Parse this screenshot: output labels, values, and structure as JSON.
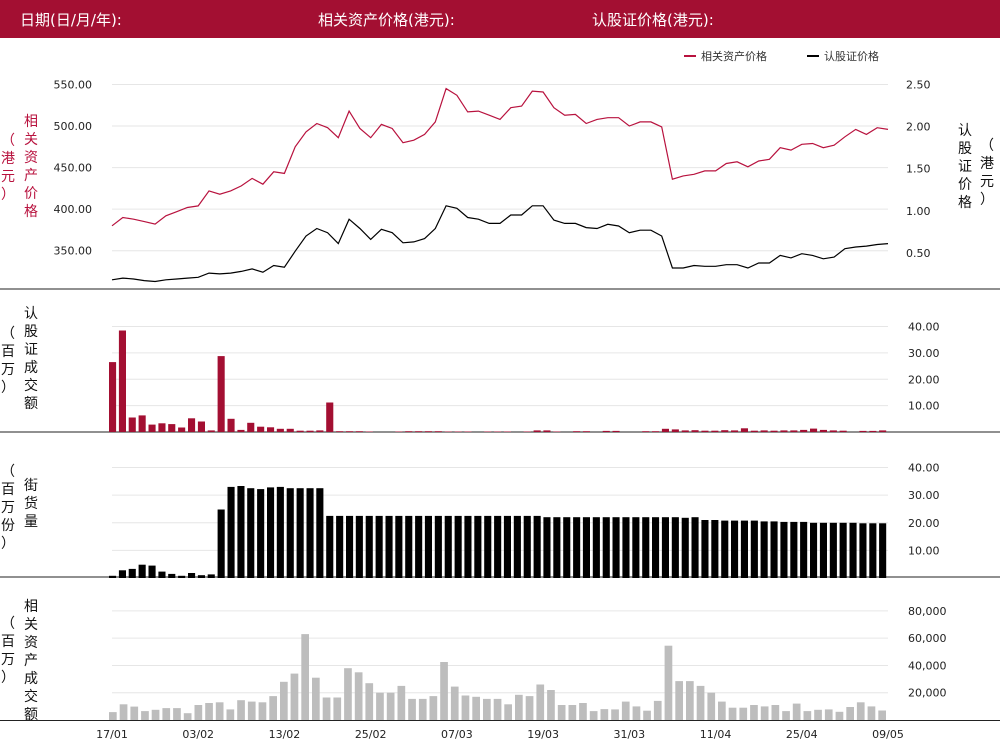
{
  "header": {
    "date_label": "日期(日/月/年):",
    "asset_price_label": "相关资产价格(港元):",
    "warrant_price_label": "认股证价格(港元):"
  },
  "colors": {
    "brand": "#a30f32",
    "asset_line": "#b8123e",
    "warrant_line": "#000000",
    "warrant_turnover_bars": "#a30f32",
    "outstanding_bars": "#000000",
    "asset_turnover_bars": "#bdbdbd"
  },
  "x_ticks": [
    "17/01",
    "03/02",
    "13/02",
    "25/02",
    "07/03",
    "19/03",
    "31/03",
    "11/04",
    "25/04",
    "09/05"
  ],
  "chart_data": [
    {
      "type": "line",
      "legend": [
        "相关资产价格",
        "认股证价格"
      ],
      "legend_position": "top-right",
      "ylabel_left": "相关资产价格",
      "ylabel_left_unit": "（港元）",
      "ylabel_right": "认股证价格",
      "ylabel_right_unit": "（港元）",
      "left_ticks": [
        "550.00",
        "500.00",
        "450.00",
        "400.00",
        "350.00"
      ],
      "right_ticks": [
        "2.50",
        "2.00",
        "1.50",
        "1.00",
        "0.50"
      ],
      "ylim_left": [
        310,
        565
      ],
      "ylim_right": [
        0.13,
        2.65
      ],
      "series": [
        {
          "name": "相关资产价格",
          "axis": "left",
          "values": [
            380,
            390,
            388,
            385,
            382,
            392,
            397,
            402,
            404,
            422,
            418,
            422,
            428,
            437,
            430,
            445,
            443,
            475,
            493,
            503,
            498,
            486,
            518,
            497,
            486,
            502,
            497,
            480,
            483,
            490,
            505,
            545,
            537,
            517,
            518,
            513,
            508,
            522,
            524,
            542,
            541,
            522,
            513,
            514,
            503,
            508,
            510,
            510,
            500,
            505,
            505,
            499,
            436,
            440,
            442,
            446,
            446,
            455,
            457,
            451,
            458,
            460,
            474,
            471,
            478,
            479,
            474,
            477,
            487,
            496,
            490,
            498,
            496
          ]
        },
        {
          "name": "认股证价格",
          "axis": "right",
          "values": [
            0.18,
            0.2,
            0.19,
            0.17,
            0.16,
            0.18,
            0.19,
            0.2,
            0.21,
            0.26,
            0.25,
            0.26,
            0.28,
            0.31,
            0.27,
            0.35,
            0.33,
            0.52,
            0.7,
            0.79,
            0.74,
            0.61,
            0.9,
            0.79,
            0.66,
            0.78,
            0.74,
            0.62,
            0.63,
            0.67,
            0.79,
            1.06,
            1.03,
            0.92,
            0.9,
            0.85,
            0.85,
            0.95,
            0.95,
            1.06,
            1.06,
            0.89,
            0.85,
            0.85,
            0.8,
            0.79,
            0.84,
            0.82,
            0.74,
            0.77,
            0.77,
            0.7,
            0.32,
            0.32,
            0.35,
            0.34,
            0.34,
            0.36,
            0.36,
            0.32,
            0.38,
            0.38,
            0.47,
            0.44,
            0.49,
            0.47,
            0.43,
            0.45,
            0.55,
            0.57,
            0.58,
            0.6,
            0.61
          ]
        }
      ]
    },
    {
      "type": "bar",
      "ylabel": "认股证成交额",
      "ylabel_unit": "（百万）",
      "ticks": [
        "40.00",
        "30.00",
        "20.00",
        "10.00"
      ],
      "ylim": [
        0,
        44
      ],
      "series": [
        {
          "name": "认股证成交额",
          "values": [
            26.5,
            38.5,
            5.5,
            6.3,
            2.8,
            3.3,
            3.0,
            1.7,
            5.2,
            4.0,
            0.6,
            28.8,
            5.0,
            0.8,
            3.5,
            2.0,
            1.8,
            1.2,
            1.2,
            0.5,
            0.5,
            0.6,
            11.2,
            0.3,
            0.3,
            0.3,
            0.2,
            0,
            0,
            0.2,
            0.3,
            0.3,
            0.3,
            0.3,
            0.2,
            0.2,
            0.2,
            0,
            0.2,
            0.2,
            0.2,
            0,
            0.2,
            0.6,
            0.6,
            0.2,
            0,
            0.3,
            0.3,
            0,
            0.4,
            0.4,
            0,
            0,
            0.3,
            0.3,
            1.2,
            1.0,
            0.6,
            0.7,
            0.5,
            0.5,
            0.7,
            0.6,
            1.4,
            0.5,
            0.6,
            0.5,
            0.6,
            0.6,
            0.8,
            1.3,
            0.8,
            0.6,
            0.5,
            0,
            0.4,
            0.4,
            0.6
          ]
        }
      ]
    },
    {
      "type": "bar",
      "ylabel": "街货量",
      "ylabel_unit": "（百万份）",
      "ticks": [
        "40.00",
        "30.00",
        "20.00",
        "10.00"
      ],
      "ylim": [
        0,
        42
      ],
      "series": [
        {
          "name": "街货量",
          "values": [
            0.8,
            2.8,
            3.3,
            4.8,
            4.5,
            2.3,
            1.5,
            0.8,
            1.8,
            1.0,
            1.3,
            24.8,
            33.0,
            33.3,
            32.5,
            32.2,
            32.8,
            33.0,
            32.5,
            32.5,
            32.5,
            32.5,
            22.5,
            22.5,
            22.5,
            22.5,
            22.5,
            22.5,
            22.5,
            22.5,
            22.5,
            22.5,
            22.5,
            22.5,
            22.5,
            22.5,
            22.5,
            22.5,
            22.5,
            22.5,
            22.5,
            22.5,
            22.5,
            22.5,
            22.0,
            22.0,
            22.0,
            22.0,
            22.0,
            22.0,
            22.0,
            22.0,
            22.0,
            22.0,
            22.0,
            22.0,
            22.0,
            22.0,
            21.8,
            22.0,
            21.0,
            21.0,
            20.8,
            20.8,
            20.8,
            20.8,
            20.5,
            20.5,
            20.3,
            20.3,
            20.3,
            20.0,
            20.0,
            20.0,
            20.0,
            20.0,
            19.8,
            19.8,
            19.8
          ]
        }
      ]
    },
    {
      "type": "bar",
      "ylabel": "相关资产成交额",
      "ylabel_unit": "（百万）",
      "ticks": [
        "80,000",
        "60,000",
        "40,000",
        "20,000"
      ],
      "ylim": [
        0,
        88000
      ],
      "series": [
        {
          "name": "相关资产成交额",
          "values": [
            5800,
            11500,
            9800,
            6500,
            7500,
            8700,
            8700,
            5000,
            11000,
            12500,
            13000,
            7800,
            14500,
            13500,
            13000,
            17500,
            28000,
            34000,
            63000,
            31000,
            16500,
            16500,
            38000,
            35000,
            27000,
            20000,
            20000,
            25000,
            15500,
            15500,
            17500,
            42500,
            24500,
            18000,
            17000,
            15500,
            15500,
            11500,
            18500,
            17500,
            26000,
            22000,
            11000,
            11000,
            12500,
            6500,
            8000,
            7800,
            13500,
            10000,
            6800,
            14000,
            54500,
            28500,
            28500,
            25000,
            20000,
            13500,
            9000,
            9000,
            11000,
            10000,
            11000,
            6500,
            12000,
            6500,
            7500,
            7800,
            6000,
            9500,
            13000,
            10000,
            7000
          ]
        }
      ]
    }
  ]
}
